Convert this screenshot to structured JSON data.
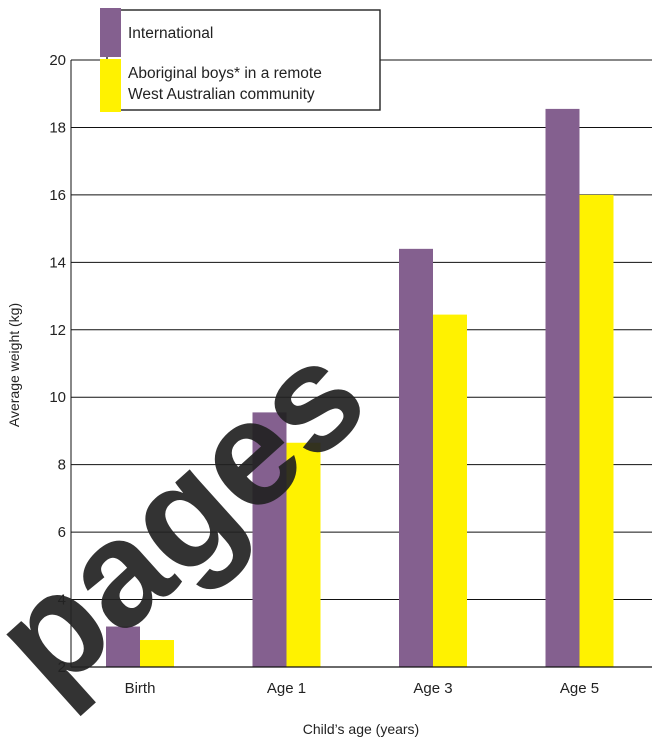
{
  "chart_data": {
    "type": "bar",
    "categories": [
      "Birth",
      "Age 1",
      "Age 3",
      "Age 5"
    ],
    "series": [
      {
        "name": "International",
        "values": [
          3.2,
          9.55,
          14.4,
          18.55
        ],
        "color": "#84608f"
      },
      {
        "name": "Aboriginal boys* in a remote West Australian community",
        "values": [
          2.8,
          8.65,
          12.45,
          16.0
        ],
        "color": "#fff200"
      }
    ],
    "legend_lines": [
      "Aboriginal boys* in a remote",
      "West Australian community"
    ],
    "title": "",
    "xlabel": "Child’s age (years)",
    "ylabel": "Average weight (kg)",
    "ylim": [
      2,
      20
    ],
    "yticks": [
      2,
      4,
      6,
      8,
      10,
      12,
      14,
      16,
      18,
      20
    ],
    "grid": true,
    "legend_position": "top-left"
  },
  "watermark": "pages"
}
